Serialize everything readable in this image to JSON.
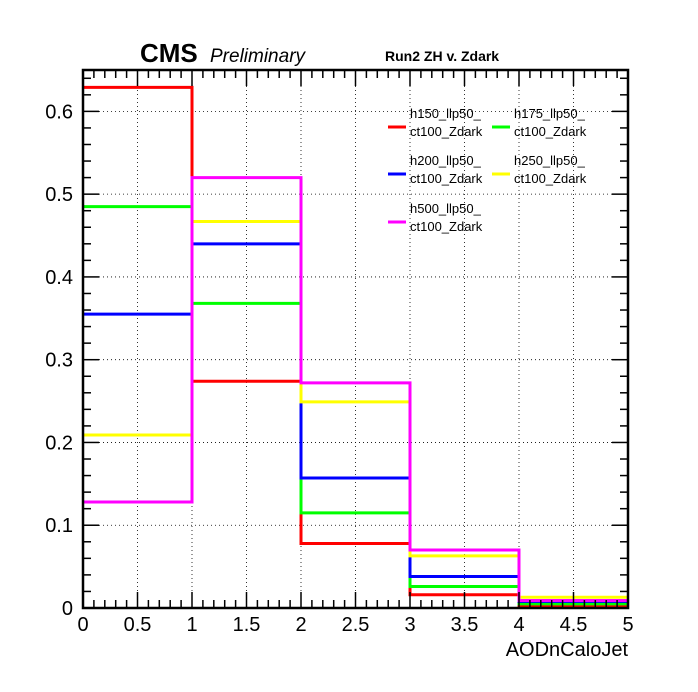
{
  "header": {
    "experiment": "CMS",
    "status": "Preliminary",
    "title": "Run2 ZH v. Zdark"
  },
  "chart_data": {
    "type": "step-histogram",
    "xlabel": "AODnCaloJet",
    "ylabel": "",
    "xlim": [
      0,
      5
    ],
    "ylim": [
      0,
      0.65
    ],
    "grid": true,
    "legend_position": "top-right",
    "bin_edges": [
      0,
      1,
      2,
      3,
      4,
      5
    ],
    "x_ticks": [
      "0",
      "0.5",
      "1",
      "1.5",
      "2",
      "2.5",
      "3",
      "3.5",
      "4",
      "4.5",
      "5"
    ],
    "x_tick_values": [
      0,
      0.5,
      1,
      1.5,
      2,
      2.5,
      3,
      3.5,
      4,
      4.5,
      5
    ],
    "y_ticks": [
      "0",
      "0.1",
      "0.2",
      "0.3",
      "0.4",
      "0.5",
      "0.6"
    ],
    "y_tick_values": [
      0,
      0.1,
      0.2,
      0.3,
      0.4,
      0.5,
      0.6
    ],
    "series": [
      {
        "name": [
          "h150_llp50_",
          "ct100_Zdark"
        ],
        "color": "#ff0000",
        "values": [
          0.629,
          0.274,
          0.078,
          0.016,
          0.003
        ]
      },
      {
        "name": [
          "h175_llp50_",
          "ct100_Zdark"
        ],
        "color": "#00ff00",
        "values": [
          0.485,
          0.368,
          0.115,
          0.026,
          0.005
        ]
      },
      {
        "name": [
          "h200_llp50_",
          "ct100_Zdark"
        ],
        "color": "#0000ff",
        "values": [
          0.355,
          0.44,
          0.157,
          0.038,
          0.008
        ]
      },
      {
        "name": [
          "h250_llp50_",
          "ct100_Zdark"
        ],
        "color": "#ffff00",
        "values": [
          0.209,
          0.467,
          0.249,
          0.063,
          0.013
        ]
      },
      {
        "name": [
          "h500_llp50_",
          "ct100_Zdark"
        ],
        "color": "#ff00ff",
        "values": [
          0.128,
          0.52,
          0.272,
          0.07,
          0.009
        ]
      }
    ]
  }
}
